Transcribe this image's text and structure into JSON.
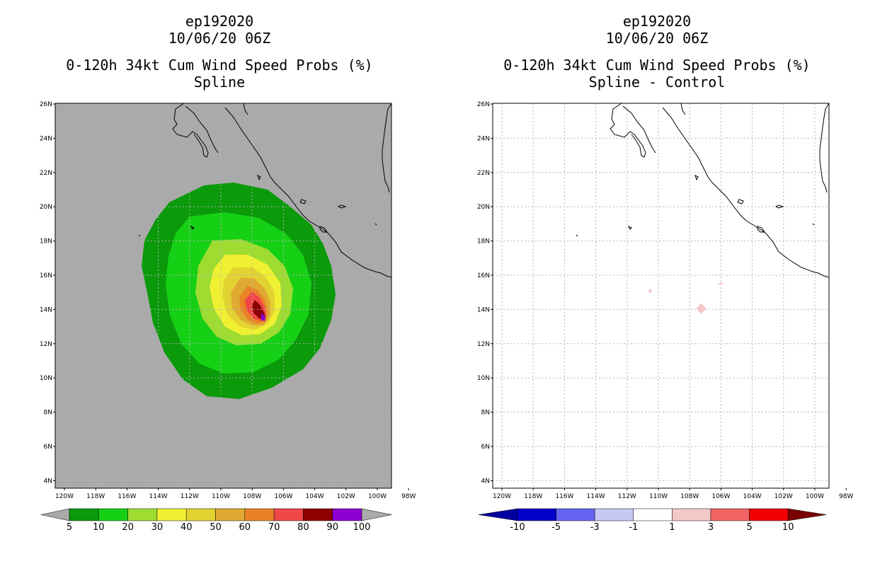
{
  "panels": {
    "left": {
      "storm": "ep192020",
      "datetime": "10/06/20 06Z",
      "product": "0-120h 34kt Cum Wind Speed Probs (%)",
      "subtitle": "Spline"
    },
    "right": {
      "storm": "ep192020",
      "datetime": "10/06/20 06Z",
      "product": "0-120h 34kt Cum Wind Speed Probs (%)",
      "subtitle": "Spline - Control"
    }
  },
  "axes": {
    "lon_labels": [
      "120W",
      "118W",
      "116W",
      "114W",
      "112W",
      "110W",
      "108W",
      "106W",
      "104W",
      "102W",
      "100W",
      "98W"
    ],
    "lat_labels": [
      "26N",
      "24N",
      "22N",
      "20N",
      "18N",
      "16N",
      "14N",
      "12N",
      "10N",
      "8N",
      "6N",
      "4N"
    ]
  },
  "colorbar_left": {
    "labels": [
      "5",
      "10",
      "20",
      "30",
      "40",
      "50",
      "60",
      "70",
      "80",
      "90",
      "100"
    ],
    "colors": [
      "#0a9a0a",
      "#16d016",
      "#9edc32",
      "#f0f032",
      "#e2d232",
      "#e0aa32",
      "#ea8228",
      "#f04646",
      "#8c0000",
      "#8c00d2"
    ],
    "end_color": "#aaaaaa"
  },
  "colorbar_right": {
    "labels": [
      "-10",
      "-5",
      "-3",
      "-1",
      "1",
      "3",
      "5",
      "10"
    ],
    "colors": [
      "#0000c8",
      "#6464f0",
      "#c8c8f5",
      "#ffffff",
      "#f5c8c8",
      "#f06464",
      "#f00000"
    ],
    "low_end_color": "#0000a0",
    "high_end_color": "#780000"
  },
  "map": {
    "background_left": "#aaaaaa",
    "background_right": "#ffffff"
  }
}
